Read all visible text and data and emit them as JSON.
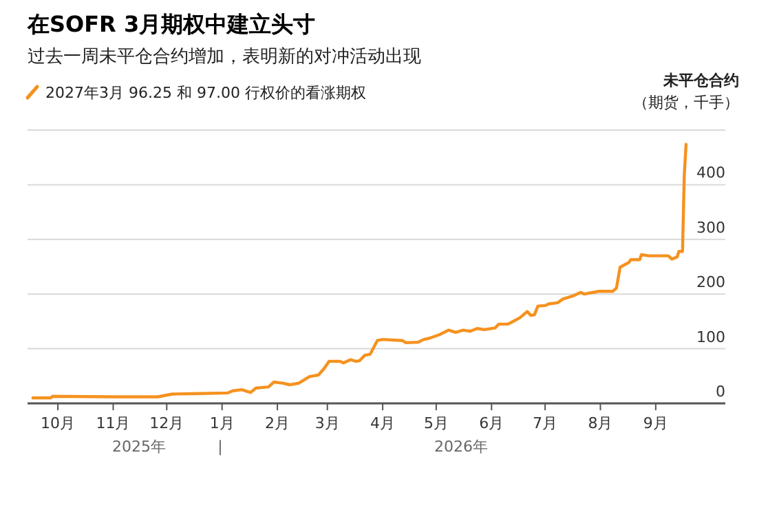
{
  "chart_data": {
    "type": "line",
    "title": "在SOFR 3月期权中建立头寸",
    "subtitle": "过去一周未平仓合约增加，表明新的对冲活动出现",
    "ylabel": "**未平仓合约**（期货，千手）",
    "legend": "top left",
    "grid": "y",
    "xlim": [
      "2025-09-14",
      "2026-10-10"
    ],
    "xticks": [
      {
        "value": "2025-10-01",
        "label": "10月"
      },
      {
        "value": "2025-11-01",
        "label": "11月"
      },
      {
        "value": "2025-12-01",
        "label": "12月"
      },
      {
        "value": "2026-01-01",
        "label": "1月"
      },
      {
        "value": "2026-02-01",
        "label": "2月"
      },
      {
        "value": "2026-03-01",
        "label": "3月"
      },
      {
        "value": "2026-04-01",
        "label": "4月"
      },
      {
        "value": "2026-05-01",
        "label": "5月"
      },
      {
        "value": "2026-06-01",
        "label": "6月"
      },
      {
        "value": "2026-07-01",
        "label": "7月"
      },
      {
        "value": "2026-08-01",
        "label": "8月"
      },
      {
        "value": "2026-09-01",
        "label": "9月"
      }
    ],
    "ylim": [
      0,
      500
    ],
    "yticks": [
      0,
      100,
      200,
      300,
      400,
      {
        "value": 500,
        "label": null
      }
    ],
    "annotations": [
      "2025年",
      "|",
      "2026年"
    ],
    "series": [
      {
        "name": "2027年3月 96.25 和 97.00 行权价的看涨期权",
        "color": "#f5921f",
        "x": [
          "2025-09-17",
          "2025-09-27",
          "2025-09-28",
          "2025-11-01",
          "2025-11-26",
          "2025-12-04",
          "2025-12-19",
          "2026-01-04",
          "2026-01-07",
          "2026-01-12",
          "2026-01-17",
          "2026-01-20",
          "2026-01-27",
          "2026-01-30",
          "2026-02-04",
          "2026-02-08",
          "2026-02-13",
          "2026-02-19",
          "2026-02-24",
          "2026-02-27",
          "2026-03-02",
          "2026-03-08",
          "2026-03-10",
          "2026-03-14",
          "2026-03-17",
          "2026-03-19",
          "2026-03-22",
          "2026-03-25",
          "2026-03-29",
          "2026-04-01",
          "2026-04-12",
          "2026-04-14",
          "2026-04-21",
          "2026-04-24",
          "2026-04-27",
          "2026-05-03",
          "2026-05-08",
          "2026-05-12",
          "2026-05-16",
          "2026-05-20",
          "2026-05-24",
          "2026-05-28",
          "2026-06-03",
          "2026-06-05",
          "2026-06-10",
          "2026-06-12",
          "2026-06-17",
          "2026-06-21",
          "2026-06-23",
          "2026-06-25",
          "2026-06-27",
          "2026-07-01",
          "2026-07-03",
          "2026-07-08",
          "2026-07-11",
          "2026-07-17",
          "2026-07-21",
          "2026-07-23",
          "2026-07-31",
          "2026-08-08",
          "2026-08-10",
          "2026-08-12",
          "2026-08-17",
          "2026-08-18",
          "2026-08-23",
          "2026-08-24",
          "2026-08-28",
          "2026-09-08",
          "2026-09-10",
          "2026-09-13",
          "2026-09-14",
          "2026-09-16",
          "2026-09-17",
          "2026-09-18"
        ],
        "values": [
          10,
          10,
          13,
          12,
          12,
          17,
          18,
          19,
          23,
          25,
          20,
          28,
          30,
          39,
          37,
          34,
          37,
          49,
          52,
          63,
          77,
          77,
          74,
          80,
          77,
          78,
          88,
          90,
          115,
          117,
          115,
          111,
          112,
          117,
          119,
          126,
          134,
          130,
          134,
          132,
          137,
          135,
          138,
          145,
          145,
          148,
          157,
          168,
          161,
          162,
          178,
          179,
          182,
          184,
          191,
          197,
          203,
          200,
          205,
          205,
          211,
          249,
          258,
          263,
          263,
          272,
          270,
          270,
          264,
          268,
          278,
          278,
          419,
          474
        ]
      }
    ]
  }
}
